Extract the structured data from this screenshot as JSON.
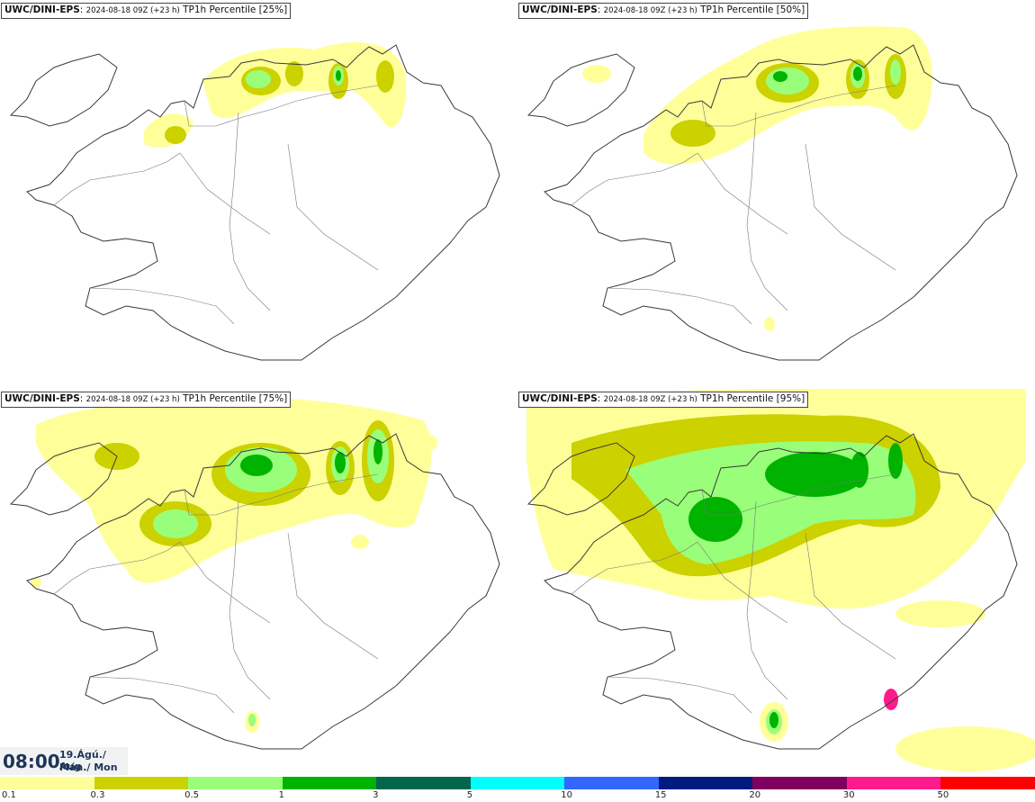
{
  "panels": [
    {
      "source": "UWC/DINI-EPS",
      "run": "2024-08-18 09Z (+23 h)",
      "param": "TP1h Percentile [25%]"
    },
    {
      "source": "UWC/DINI-EPS",
      "run": "2024-08-18 09Z (+23 h)",
      "param": "TP1h Percentile [50%]"
    },
    {
      "source": "UWC/DINI-EPS",
      "run": "2024-08-18 09Z (+23 h)",
      "param": "TP1h Percentile [75%]"
    },
    {
      "source": "UWC/DINI-EPS",
      "run": "2024-08-18 09Z (+23 h)",
      "param": "TP1h Percentile [95%]"
    }
  ],
  "valid": {
    "time": "08:00",
    "date_line1": "19.Ágú./ Aug",
    "date_line2": "Mán./ Mon"
  },
  "legend": {
    "colors": [
      "#ffff99",
      "#ccd100",
      "#99ff7a",
      "#00b300",
      "#00664d",
      "#00ffff",
      "#3366ff",
      "#001a80",
      "#800060",
      "#ff1a8c",
      "#ff0000"
    ],
    "ticks": [
      "0.1",
      "0.3",
      "0.5",
      "1",
      "3",
      "5",
      "10",
      "15",
      "20",
      "30",
      "50"
    ]
  }
}
